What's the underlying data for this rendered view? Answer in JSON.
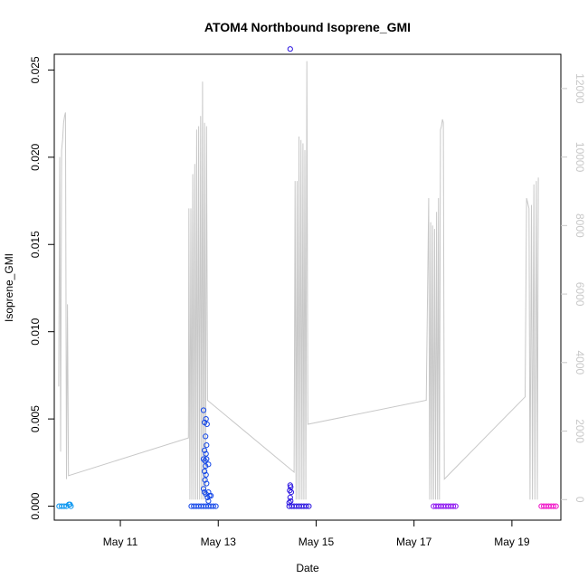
{
  "chart_data": {
    "type": "scatter",
    "title": "ATOM4 Northbound Isoprene_GMI",
    "xlabel": "Date",
    "ylabel": "Isoprene_GMI",
    "x_ticks": [
      "May 11",
      "May 13",
      "May 15",
      "May 17",
      "May 19"
    ],
    "y_ticks": [
      "0.000",
      "0.005",
      "0.010",
      "0.015",
      "0.020",
      "0.025"
    ],
    "y2_ticks": [
      "0",
      "2000",
      "4000",
      "6000",
      "8000",
      "10000",
      "12000"
    ],
    "xlim_days": [
      9.65,
      20.0
    ],
    "ylim": [
      -0.0008,
      0.0259
    ],
    "y2lim": [
      -600,
      13000
    ],
    "scatter_series": [
      {
        "name": "",
        "color": "#0b96f0",
        "points": [
          [
            9.75,
            0.0
          ],
          [
            9.8,
            0.0
          ],
          [
            9.85,
            0.0
          ],
          [
            9.9,
            0.0
          ],
          [
            9.95,
            0.0001
          ],
          [
            9.97,
            0.0001
          ],
          [
            9.99,
            0.0
          ]
        ]
      },
      {
        "name": "",
        "color": "#1548e8",
        "points": [
          [
            12.45,
            0.0
          ],
          [
            12.5,
            0.0
          ],
          [
            12.55,
            0.0
          ],
          [
            12.6,
            0.0
          ],
          [
            12.65,
            0.0
          ],
          [
            12.7,
            0.0
          ],
          [
            12.75,
            0.0
          ],
          [
            12.8,
            0.0
          ],
          [
            12.85,
            0.0
          ],
          [
            12.9,
            0.0
          ],
          [
            12.95,
            0.0
          ],
          [
            12.7,
            0.0055
          ],
          [
            12.72,
            0.0048
          ],
          [
            12.75,
            0.005
          ],
          [
            12.77,
            0.0047
          ],
          [
            12.74,
            0.004
          ],
          [
            12.76,
            0.0035
          ],
          [
            12.72,
            0.0032
          ],
          [
            12.75,
            0.003
          ],
          [
            12.8,
            0.0024
          ],
          [
            12.7,
            0.0027
          ],
          [
            12.73,
            0.0026
          ],
          [
            12.76,
            0.0027
          ],
          [
            12.74,
            0.0023
          ],
          [
            12.72,
            0.002
          ],
          [
            12.75,
            0.0018
          ],
          [
            12.73,
            0.0015
          ],
          [
            12.76,
            0.0013
          ],
          [
            12.7,
            0.001
          ],
          [
            12.72,
            0.0008
          ],
          [
            12.75,
            0.0007
          ],
          [
            12.8,
            0.0008
          ],
          [
            12.82,
            0.0006
          ],
          [
            12.78,
            0.0005
          ],
          [
            12.85,
            0.0006
          ],
          [
            12.8,
            0.0003
          ]
        ]
      },
      {
        "name": "",
        "color": "#2a14e0",
        "points": [
          [
            14.45,
            0.0
          ],
          [
            14.5,
            0.0
          ],
          [
            14.55,
            0.0
          ],
          [
            14.6,
            0.0
          ],
          [
            14.65,
            0.0
          ],
          [
            14.7,
            0.0
          ],
          [
            14.75,
            0.0
          ],
          [
            14.8,
            0.0
          ],
          [
            14.85,
            0.0
          ],
          [
            14.47,
            0.0012
          ],
          [
            14.48,
            0.0011
          ],
          [
            14.46,
            0.0009
          ],
          [
            14.49,
            0.0008
          ],
          [
            14.47,
            0.0005
          ],
          [
            14.48,
            0.0003
          ],
          [
            14.45,
            0.0002
          ],
          [
            14.47,
            0.0262
          ]
        ]
      },
      {
        "name": "",
        "color": "#8c14f0",
        "points": [
          [
            17.4,
            0.0
          ],
          [
            17.45,
            0.0
          ],
          [
            17.5,
            0.0
          ],
          [
            17.55,
            0.0
          ],
          [
            17.6,
            0.0
          ],
          [
            17.65,
            0.0
          ],
          [
            17.7,
            0.0
          ],
          [
            17.75,
            0.0
          ],
          [
            17.8,
            0.0
          ],
          [
            17.85,
            0.0
          ]
        ]
      },
      {
        "name": "",
        "color": "#f014c8",
        "points": [
          [
            19.6,
            0.0
          ],
          [
            19.65,
            0.0
          ],
          [
            19.7,
            0.0
          ],
          [
            19.75,
            0.0
          ],
          [
            19.8,
            0.0
          ],
          [
            19.85,
            0.0
          ],
          [
            19.9,
            0.0
          ]
        ]
      }
    ],
    "altitude_series": {
      "name": "",
      "color": "#c8c8c8",
      "points": [
        [
          9.74,
          3300
        ],
        [
          9.76,
          10000
        ],
        [
          9.78,
          1400
        ],
        [
          9.8,
          10200
        ],
        [
          9.82,
          10500
        ],
        [
          9.84,
          11000
        ],
        [
          9.86,
          11200
        ],
        [
          9.88,
          11300
        ],
        [
          9.9,
          600
        ],
        [
          9.92,
          5700
        ],
        [
          9.94,
          700
        ],
        [
          12.39,
          1800
        ],
        [
          12.4,
          8500
        ],
        [
          12.42,
          0
        ],
        [
          12.44,
          8500
        ],
        [
          12.46,
          0
        ],
        [
          12.48,
          9500
        ],
        [
          12.5,
          0
        ],
        [
          12.52,
          9800
        ],
        [
          12.54,
          0
        ],
        [
          12.56,
          10800
        ],
        [
          12.58,
          0
        ],
        [
          12.6,
          10900
        ],
        [
          12.62,
          0
        ],
        [
          12.64,
          11200
        ],
        [
          12.66,
          0
        ],
        [
          12.68,
          12200
        ],
        [
          12.7,
          0
        ],
        [
          12.72,
          11000
        ],
        [
          12.74,
          0
        ],
        [
          12.76,
          10900
        ],
        [
          12.78,
          2900
        ],
        [
          14.55,
          800
        ],
        [
          14.57,
          9300
        ],
        [
          14.59,
          0
        ],
        [
          14.61,
          9300
        ],
        [
          14.63,
          0
        ],
        [
          14.65,
          10600
        ],
        [
          14.67,
          0
        ],
        [
          14.69,
          10500
        ],
        [
          14.71,
          0
        ],
        [
          14.73,
          10400
        ],
        [
          14.75,
          0
        ],
        [
          14.77,
          10200
        ],
        [
          14.79,
          0
        ],
        [
          14.81,
          12800
        ],
        [
          14.83,
          2200
        ],
        [
          17.25,
          2900
        ],
        [
          17.3,
          8800
        ],
        [
          17.32,
          0
        ],
        [
          17.34,
          8100
        ],
        [
          17.36,
          0
        ],
        [
          17.38,
          8000
        ],
        [
          17.4,
          0
        ],
        [
          17.42,
          7900
        ],
        [
          17.44,
          0
        ],
        [
          17.46,
          8400
        ],
        [
          17.48,
          0
        ],
        [
          17.5,
          8800
        ],
        [
          17.52,
          0
        ],
        [
          17.54,
          10800
        ],
        [
          17.56,
          10900
        ],
        [
          17.58,
          11100
        ],
        [
          17.6,
          11000
        ],
        [
          17.62,
          600
        ],
        [
          19.27,
          3000
        ],
        [
          19.3,
          8800
        ],
        [
          19.35,
          8500
        ],
        [
          19.37,
          0
        ],
        [
          19.4,
          8600
        ],
        [
          19.42,
          0
        ],
        [
          19.45,
          9200
        ],
        [
          19.47,
          0
        ],
        [
          19.5,
          9300
        ],
        [
          19.52,
          0
        ],
        [
          19.54,
          9400
        ]
      ]
    }
  }
}
